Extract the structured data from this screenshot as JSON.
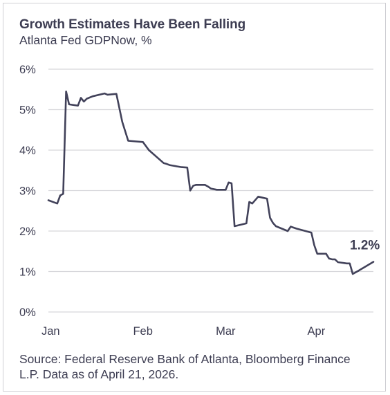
{
  "header": {
    "title": "Growth Estimates Have Been Falling",
    "subtitle": "Atlanta Fed GDPNow, %"
  },
  "footer": {
    "source": "Source: Federal Reserve Bank of Atlanta, Bloomberg Finance L.P. Data as of April 21, 2026."
  },
  "chart_data": {
    "type": "line",
    "title": "Growth Estimates Have Been Falling",
    "subtitle": "Atlanta Fed GDPNow, %",
    "xlabel": "",
    "ylabel": "",
    "grid": true,
    "legend": "none",
    "x_ticks": [
      {
        "label": "Jan",
        "value": "2026-01-01"
      },
      {
        "label": "Feb",
        "value": "2026-02-01"
      },
      {
        "label": "Mar",
        "value": "2026-03-01"
      },
      {
        "label": "Apr",
        "value": "2026-04-01"
      }
    ],
    "y_ticks": [
      "0%",
      "1%",
      "2%",
      "3%",
      "4%",
      "5%",
      "6%"
    ],
    "ylim": [
      0,
      6
    ],
    "xlim": [
      "2026-01-01",
      "2026-04-21"
    ],
    "line_color": "#42425a",
    "grid_color": "#d6d6da",
    "series": [
      {
        "x": [
          "2026-01-01",
          "2026-01-04",
          "2026-01-05",
          "2026-01-06",
          "2026-01-07",
          "2026-01-07",
          "2026-01-08",
          "2026-01-11",
          "2026-01-12",
          "2026-01-13",
          "2026-01-14",
          "2026-01-16",
          "2026-01-20",
          "2026-01-21",
          "2026-01-24",
          "2026-01-26",
          "2026-01-28",
          "2026-02-02",
          "2026-02-04",
          "2026-02-09",
          "2026-02-10",
          "2026-02-11",
          "2026-02-15",
          "2026-02-17",
          "2026-02-18",
          "2026-02-19",
          "2026-02-20",
          "2026-02-23",
          "2026-02-24",
          "2026-02-25",
          "2026-02-27",
          "2026-03-02",
          "2026-03-03",
          "2026-03-04",
          "2026-03-05",
          "2026-03-09",
          "2026-03-10",
          "2026-03-11",
          "2026-03-13",
          "2026-03-16",
          "2026-03-17",
          "2026-03-18",
          "2026-03-19",
          "2026-03-23",
          "2026-03-24",
          "2026-03-26",
          "2026-03-31",
          "2026-04-01",
          "2026-04-02",
          "2026-04-05",
          "2026-04-06",
          "2026-04-07",
          "2026-04-08",
          "2026-04-09",
          "2026-04-12",
          "2026-04-13",
          "2026-04-14",
          "2026-04-16",
          "2026-04-21"
        ],
        "values": [
          2.76,
          2.68,
          2.88,
          2.92,
          5.45,
          5.45,
          5.13,
          5.1,
          5.29,
          5.2,
          5.27,
          5.33,
          5.4,
          5.37,
          5.39,
          4.7,
          4.23,
          4.2,
          4.0,
          3.68,
          3.66,
          3.63,
          3.58,
          3.57,
          3.0,
          3.12,
          3.14,
          3.14,
          3.1,
          3.05,
          3.02,
          3.02,
          3.2,
          3.18,
          2.12,
          2.19,
          2.72,
          2.68,
          2.85,
          2.8,
          2.33,
          2.2,
          2.12,
          2.0,
          2.11,
          2.06,
          1.96,
          1.65,
          1.44,
          1.44,
          1.32,
          1.3,
          1.3,
          1.23,
          1.2,
          1.2,
          0.94,
          1.02,
          1.24
        ]
      }
    ],
    "annotations": [
      {
        "text": "1.2%",
        "x": "2026-04-21",
        "y": 1.24
      }
    ]
  }
}
